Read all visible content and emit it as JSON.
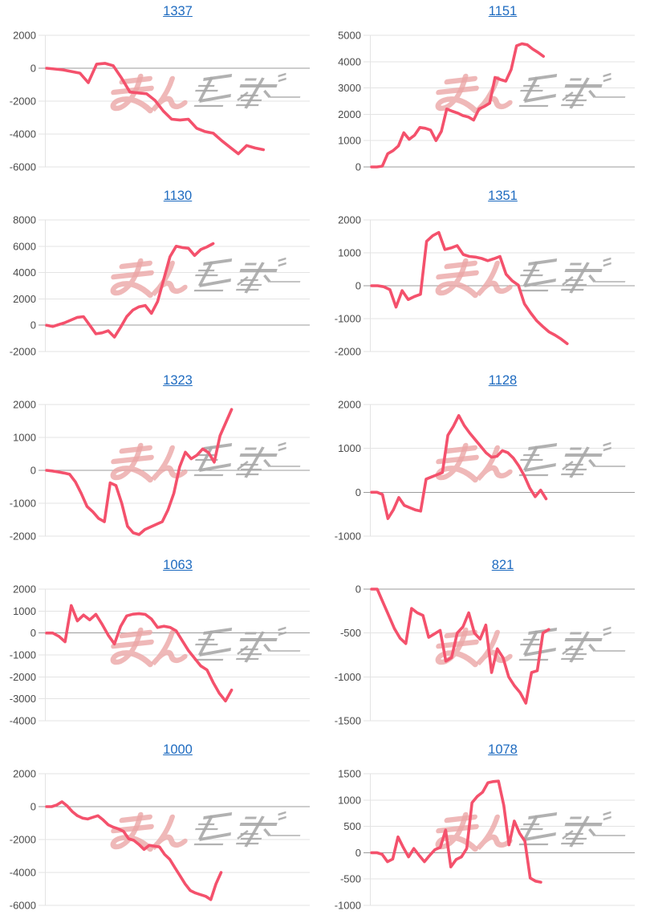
{
  "style": {
    "line_color": "#f4516c",
    "grid_color": "#e3e3e3",
    "zero_line_color": "#9b9b9b",
    "tick_label_color": "#4a4a4a",
    "title_link_color": "#1e6bc0",
    "watermark_pink": "#eba6a6",
    "watermark_gray": "#a9a9a9",
    "background": "#ffffff"
  },
  "watermark": {
    "name": "minrepo-logo-watermark"
  },
  "chart_data": [
    {
      "type": "line",
      "title": "1337",
      "xlabel": "",
      "ylabel": "",
      "grid": true,
      "yticks": [
        2000,
        0,
        -2000,
        -4000,
        -6000
      ],
      "ylim": [
        -6000,
        2000
      ],
      "end_frac": 0.82,
      "values": [
        0,
        -50,
        -100,
        -200,
        -300,
        -880,
        250,
        300,
        150,
        -600,
        -1450,
        -1500,
        -1550,
        -1950,
        -2600,
        -3100,
        -3150,
        -3100,
        -3650,
        -3850,
        -3950,
        -4400,
        -4800,
        -5200,
        -4700,
        -4850,
        -4950
      ]
    },
    {
      "type": "line",
      "title": "1151",
      "xlabel": "",
      "ylabel": "",
      "grid": true,
      "yticks": [
        5000,
        4000,
        3000,
        2000,
        1000,
        0
      ],
      "ylim": [
        0,
        5000
      ],
      "end_frac": 0.65,
      "values": [
        0,
        0,
        30,
        500,
        620,
        800,
        1300,
        1050,
        1200,
        1500,
        1470,
        1400,
        1000,
        1350,
        2200,
        2120,
        2050,
        1950,
        1900,
        1780,
        2200,
        2300,
        2420,
        3400,
        3320,
        3260,
        3700,
        4600,
        4680,
        4640,
        4480,
        4350,
        4200
      ]
    },
    {
      "type": "line",
      "title": "1130",
      "xlabel": "",
      "ylabel": "",
      "grid": true,
      "yticks": [
        8000,
        6000,
        4000,
        2000,
        0,
        -2000
      ],
      "ylim": [
        -2000,
        8000
      ],
      "end_frac": 0.63,
      "values": [
        0,
        -100,
        50,
        200,
        400,
        600,
        650,
        0,
        -650,
        -580,
        -420,
        -900,
        -150,
        650,
        1150,
        1400,
        1500,
        900,
        1800,
        3500,
        5200,
        6000,
        5900,
        5850,
        5300,
        5750,
        5950,
        6200
      ]
    },
    {
      "type": "line",
      "title": "1351",
      "xlabel": "",
      "ylabel": "",
      "grid": true,
      "yticks": [
        2000,
        1000,
        0,
        -1000,
        -2000
      ],
      "ylim": [
        -2000,
        2000
      ],
      "end_frac": 0.74,
      "values": [
        0,
        0,
        -30,
        -120,
        -650,
        -150,
        -420,
        -330,
        -260,
        1350,
        1520,
        1620,
        1100,
        1150,
        1220,
        950,
        890,
        870,
        830,
        760,
        820,
        890,
        350,
        150,
        20,
        -550,
        -820,
        -1060,
        -1240,
        -1400,
        -1500,
        -1620,
        -1760
      ]
    },
    {
      "type": "line",
      "title": "1323",
      "xlabel": "",
      "ylabel": "",
      "grid": true,
      "yticks": [
        2000,
        1000,
        0,
        -1000,
        -2000
      ],
      "ylim": [
        -2000,
        2000
      ],
      "end_frac": 0.7,
      "values": [
        0,
        -20,
        -50,
        -80,
        -120,
        -350,
        -700,
        -1100,
        -1260,
        -1460,
        -1560,
        -380,
        -460,
        -1000,
        -1700,
        -1900,
        -1950,
        -1800,
        -1720,
        -1640,
        -1560,
        -1200,
        -700,
        100,
        550,
        350,
        460,
        650,
        540,
        250,
        1050,
        1450,
        1850
      ]
    },
    {
      "type": "line",
      "title": "1128",
      "xlabel": "",
      "ylabel": "",
      "grid": true,
      "yticks": [
        2000,
        1000,
        0,
        -1000
      ],
      "ylim": [
        -1000,
        2000
      ],
      "end_frac": 0.66,
      "values": [
        0,
        0,
        -50,
        -600,
        -400,
        -120,
        -300,
        -350,
        -400,
        -430,
        300,
        350,
        400,
        450,
        1300,
        1500,
        1750,
        1520,
        1350,
        1200,
        1050,
        900,
        800,
        820,
        950,
        900,
        780,
        600,
        380,
        100,
        -100,
        50,
        -150
      ]
    },
    {
      "type": "line",
      "title": "1063",
      "xlabel": "",
      "ylabel": "",
      "grid": true,
      "yticks": [
        2000,
        1000,
        0,
        -1000,
        -2000,
        -3000,
        -4000
      ],
      "ylim": [
        -4000,
        2000
      ],
      "end_frac": 0.7,
      "values": [
        0,
        0,
        -150,
        -400,
        1250,
        550,
        820,
        600,
        850,
        400,
        -100,
        -500,
        300,
        780,
        860,
        880,
        850,
        640,
        250,
        310,
        260,
        100,
        -350,
        -800,
        -1150,
        -1500,
        -1680,
        -2250,
        -2750,
        -3100,
        -2600
      ]
    },
    {
      "type": "line",
      "title": "821",
      "xlabel": "",
      "ylabel": "",
      "grid": true,
      "yticks": [
        0,
        -500,
        -1000,
        -1500
      ],
      "ylim": [
        -1500,
        0
      ],
      "end_frac": 0.67,
      "values": [
        0,
        0,
        -150,
        -300,
        -450,
        -560,
        -620,
        -220,
        -270,
        -300,
        -550,
        -510,
        -470,
        -820,
        -780,
        -500,
        -430,
        -270,
        -500,
        -570,
        -410,
        -950,
        -680,
        -780,
        -1000,
        -1100,
        -1180,
        -1300,
        -950,
        -930,
        -500,
        -460
      ]
    },
    {
      "type": "line",
      "title": "1000",
      "xlabel": "",
      "ylabel": "",
      "grid": true,
      "yticks": [
        2000,
        0,
        -2000,
        -4000,
        -6000
      ],
      "ylim": [
        -6000,
        2000
      ],
      "end_frac": 0.66,
      "values": [
        0,
        0,
        100,
        300,
        50,
        -300,
        -550,
        -700,
        -750,
        -650,
        -550,
        -800,
        -1100,
        -1250,
        -1350,
        -1500,
        -1950,
        -2050,
        -2300,
        -2600,
        -2350,
        -2400,
        -2450,
        -2900,
        -3200,
        -3700,
        -4200,
        -4700,
        -5100,
        -5250,
        -5350,
        -5450,
        -5650,
        -4700,
        -4000
      ]
    },
    {
      "type": "line",
      "title": "1078",
      "xlabel": "",
      "ylabel": "",
      "grid": true,
      "yticks": [
        1500,
        1000,
        500,
        0,
        -500,
        -1000
      ],
      "ylim": [
        -1000,
        1500
      ],
      "end_frac": 0.64,
      "values": [
        0,
        0,
        -30,
        -170,
        -120,
        300,
        100,
        -80,
        80,
        -50,
        -170,
        -50,
        60,
        100,
        430,
        -270,
        -130,
        -80,
        80,
        950,
        1070,
        1150,
        1330,
        1350,
        1360,
        900,
        150,
        600,
        370,
        220,
        -480,
        -540,
        -560
      ]
    }
  ]
}
